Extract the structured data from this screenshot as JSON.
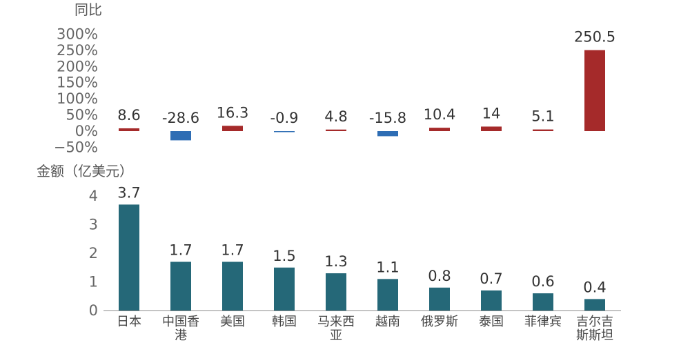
{
  "chart_data": [
    {
      "type": "bar",
      "ylabel": "同比",
      "ylim": [
        -50,
        300
      ],
      "yticks": [
        -50,
        0,
        50,
        100,
        150,
        200,
        250,
        300
      ],
      "ytick_labels": [
        "−50%",
        "0%",
        "50%",
        "100%",
        "150%",
        "200%",
        "250%",
        "300%"
      ],
      "categories": [
        "日本",
        "中国香港",
        "美国",
        "韩国",
        "马来西亚",
        "越南",
        "俄罗斯",
        "泰国",
        "菲律宾",
        "吉尔吉斯斯坦"
      ],
      "values": [
        8.6,
        -28.6,
        16.3,
        -0.9,
        4.8,
        -15.8,
        10.4,
        14,
        5.1,
        250.5
      ],
      "value_labels": [
        "8.6",
        "-28.6",
        "16.3",
        "-0.9",
        "4.8",
        "-15.8",
        "10.4",
        "14",
        "5.1",
        "250.5"
      ],
      "colors": {
        "positive": "#a52a2a",
        "negative": "#2e6db4"
      },
      "grid": false
    },
    {
      "type": "bar",
      "ylabel": "金额（亿美元）",
      "ylim": [
        0,
        4
      ],
      "yticks": [
        0,
        1,
        2,
        3,
        4
      ],
      "ytick_labels": [
        "0",
        "1",
        "2",
        "3",
        "4"
      ],
      "categories": [
        "日本",
        "中国香港",
        "美国",
        "韩国",
        "马来西亚",
        "越南",
        "俄罗斯",
        "泰国",
        "菲律宾",
        "吉尔吉斯斯坦"
      ],
      "category_lines": [
        [
          "日本"
        ],
        [
          "中国香",
          "港"
        ],
        [
          "美国"
        ],
        [
          "韩国"
        ],
        [
          "马来西",
          "亚"
        ],
        [
          "越南"
        ],
        [
          "俄罗斯"
        ],
        [
          "泰国"
        ],
        [
          "菲律宾"
        ],
        [
          "吉尔吉",
          "斯斯坦"
        ]
      ],
      "values": [
        3.7,
        1.7,
        1.7,
        1.5,
        1.3,
        1.1,
        0.8,
        0.7,
        0.6,
        0.4
      ],
      "value_labels": [
        "3.7",
        "1.7",
        "1.7",
        "1.5",
        "1.3",
        "1.1",
        "0.8",
        "0.7",
        "0.6",
        "0.4"
      ],
      "colors": {
        "bar": "#256878",
        "axis": "#888888"
      },
      "grid": false
    }
  ]
}
